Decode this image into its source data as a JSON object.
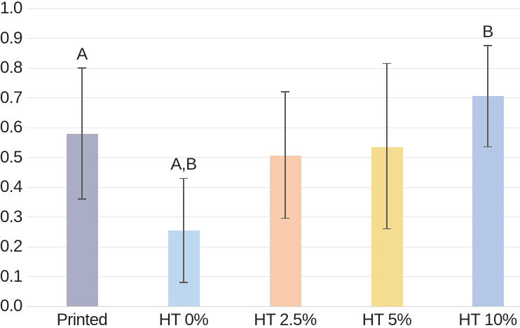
{
  "chart_data": {
    "type": "bar",
    "title": "",
    "xlabel": "",
    "ylabel": "",
    "categories": [
      "Printed",
      "HT 0%",
      "HT 2.5%",
      "HT 5%",
      "HT 10%"
    ],
    "values": [
      0.58,
      0.255,
      0.505,
      0.535,
      0.705
    ],
    "error_bars": {
      "low": [
        0.36,
        0.08,
        0.295,
        0.26,
        0.535
      ],
      "high": [
        0.8,
        0.43,
        0.72,
        0.815,
        0.875
      ]
    },
    "annotations": [
      "A",
      "A,B",
      "",
      "",
      "B"
    ],
    "bar_colors": [
      "#a9aec4",
      "#bdd7ee",
      "#f8cbad",
      "#f5dd8f",
      "#b4c7e7"
    ],
    "ylim": [
      0.0,
      1.0
    ],
    "ytick_step": 0.1,
    "yticks": [
      "0.0",
      "0.1",
      "0.2",
      "0.3",
      "0.4",
      "0.5",
      "0.6",
      "0.7",
      "0.8",
      "0.9",
      "1.0"
    ],
    "grid": true,
    "legend_position": "none"
  },
  "colors": {
    "background": "#ffffff",
    "gridline": "#e9e7e4",
    "axis_line": "#d9d8d5",
    "error_bar": "#595959",
    "text": "#1f1f1f"
  }
}
